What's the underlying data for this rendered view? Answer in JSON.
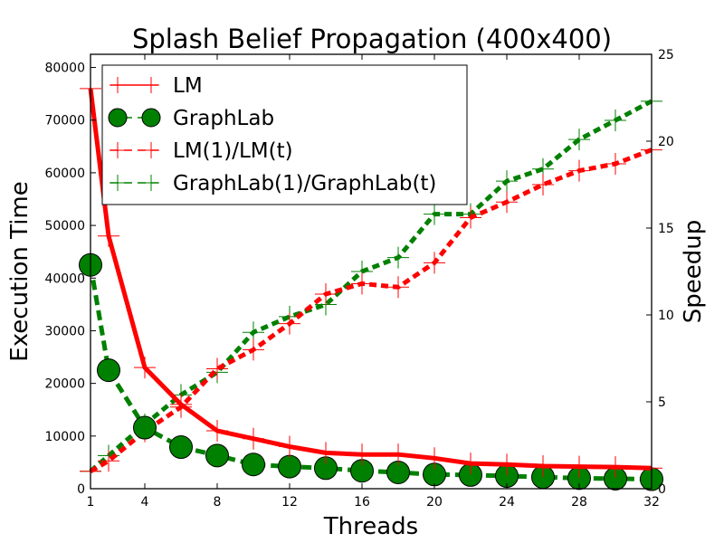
{
  "chart_data": {
    "type": "line",
    "title": "Splash Belief Propagation (400x400)",
    "xlabel": "Threads",
    "ylabel": "Execution Time",
    "y2label": "Speedup",
    "xlim": [
      1,
      32
    ],
    "ylim": [
      0,
      82500
    ],
    "y2lim": [
      0,
      25
    ],
    "x_ticks": [
      "1",
      "4",
      "8",
      "12",
      "16",
      "20",
      "24",
      "28",
      "32"
    ],
    "y_ticks": [
      "0",
      "10000",
      "20000",
      "30000",
      "40000",
      "50000",
      "60000",
      "70000",
      "80000"
    ],
    "y2_ticks": [
      "0",
      "5",
      "10",
      "15",
      "20",
      "25"
    ],
    "grid": false,
    "legend_position": "top-left",
    "series": [
      {
        "name": "LM",
        "axis": "left",
        "color": "#ff0000",
        "linestyle": "solid",
        "marker": "plus",
        "x": [
          1,
          2,
          4,
          6,
          8,
          10,
          12,
          14,
          16,
          18,
          20,
          22,
          24,
          26,
          28,
          30,
          32
        ],
        "y": [
          76000,
          48000,
          23000,
          16000,
          11000,
          9500,
          8000,
          6800,
          6500,
          6500,
          5800,
          4800,
          4600,
          4300,
          4200,
          4100,
          3900
        ]
      },
      {
        "name": "GraphLab",
        "axis": "left",
        "color": "#008000",
        "linestyle": "dashed",
        "marker": "circle",
        "x": [
          1,
          2,
          4,
          6,
          8,
          10,
          12,
          14,
          16,
          18,
          20,
          22,
          24,
          26,
          28,
          30,
          32
        ],
        "y": [
          42500,
          22500,
          11600,
          7900,
          6300,
          4600,
          4200,
          3900,
          3400,
          3100,
          2700,
          2600,
          2400,
          2200,
          2000,
          1900,
          1800
        ]
      },
      {
        "name": "LM(1)/LM(t)",
        "axis": "right",
        "color": "#ff0000",
        "linestyle": "dashed",
        "marker": "plus",
        "x": [
          1,
          2,
          4,
          6,
          8,
          10,
          12,
          14,
          16,
          18,
          20,
          22,
          24,
          26,
          28,
          30,
          32
        ],
        "y": [
          1.0,
          1.6,
          3.3,
          4.7,
          6.9,
          8.0,
          9.5,
          11.2,
          11.8,
          11.6,
          13.0,
          15.6,
          16.5,
          17.5,
          18.3,
          18.7,
          19.5
        ]
      },
      {
        "name": "GraphLab(1)/GraphLab(t)",
        "axis": "right",
        "color": "#008000",
        "linestyle": "dashed",
        "marker": "plus",
        "x": [
          1,
          2,
          4,
          6,
          8,
          10,
          12,
          14,
          16,
          18,
          20,
          22,
          24,
          26,
          28,
          30,
          32
        ],
        "y": [
          1.0,
          1.9,
          3.7,
          5.4,
          6.7,
          9.0,
          9.9,
          10.6,
          12.5,
          13.3,
          15.8,
          15.8,
          17.7,
          18.4,
          20.1,
          21.2,
          22.3
        ]
      }
    ]
  }
}
